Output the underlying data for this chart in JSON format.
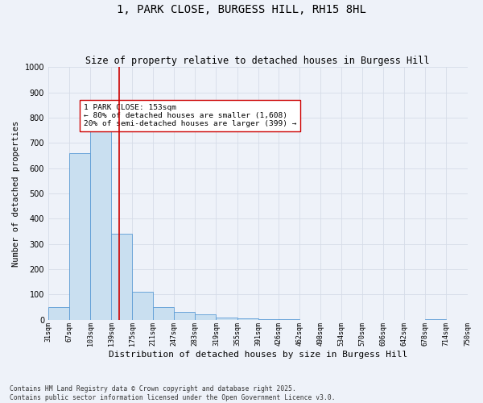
{
  "title": "1, PARK CLOSE, BURGESS HILL, RH15 8HL",
  "subtitle": "Size of property relative to detached houses in Burgess Hill",
  "xlabel": "Distribution of detached houses by size in Burgess Hill",
  "ylabel": "Number of detached properties",
  "bin_edges": [
    31,
    67,
    103,
    139,
    175,
    211,
    247,
    283,
    319,
    355,
    391,
    426,
    462,
    498,
    534,
    570,
    606,
    642,
    678,
    714,
    750
  ],
  "bar_heights": [
    50,
    660,
    760,
    340,
    110,
    50,
    30,
    20,
    10,
    5,
    2,
    1,
    0,
    0,
    0,
    0,
    0,
    0,
    1,
    0
  ],
  "bar_facecolor": "#c9dff0",
  "bar_edgecolor": "#5b9bd5",
  "vline_x": 153,
  "vline_color": "#cc0000",
  "annotation_text": "1 PARK CLOSE: 153sqm\n← 80% of detached houses are smaller (1,608)\n20% of semi-detached houses are larger (399) →",
  "annotation_box_edgecolor": "#cc0000",
  "annotation_box_facecolor": "#ffffff",
  "ylim": [
    0,
    1000
  ],
  "xlim": [
    31,
    750
  ],
  "tick_labels": [
    "31sqm",
    "67sqm",
    "103sqm",
    "139sqm",
    "175sqm",
    "211sqm",
    "247sqm",
    "283sqm",
    "319sqm",
    "355sqm",
    "391sqm",
    "426sqm",
    "462sqm",
    "498sqm",
    "534sqm",
    "570sqm",
    "606sqm",
    "642sqm",
    "678sqm",
    "714sqm",
    "750sqm"
  ],
  "grid_color": "#d5dce8",
  "background_color": "#eef2f9",
  "footer_text": "Contains HM Land Registry data © Crown copyright and database right 2025.\nContains public sector information licensed under the Open Government Licence v3.0.",
  "title_fontsize": 10,
  "subtitle_fontsize": 8.5,
  "ylabel_fontsize": 7.5,
  "xlabel_fontsize": 8,
  "tick_fontsize": 6,
  "annotation_fontsize": 6.8,
  "footer_fontsize": 5.8
}
